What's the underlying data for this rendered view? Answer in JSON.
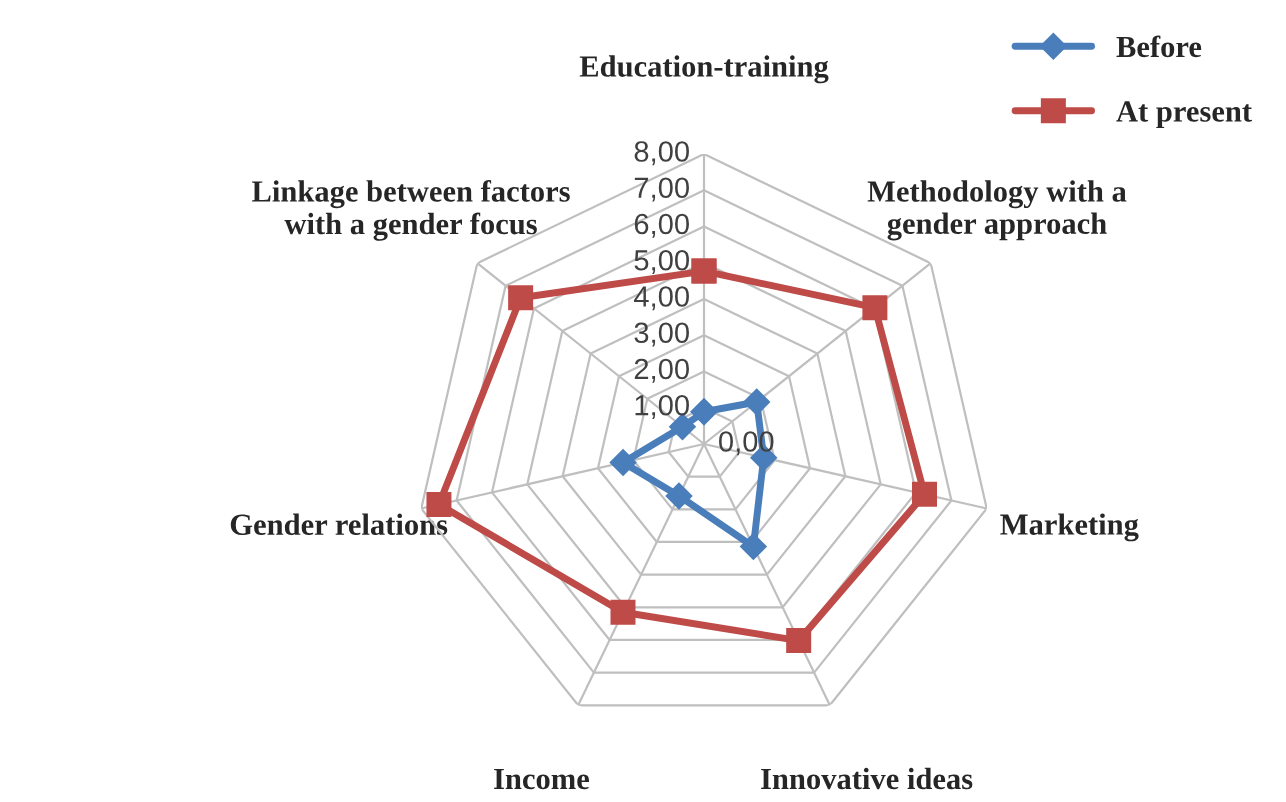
{
  "chart_data": {
    "type": "radar",
    "categories": [
      "Education-training",
      "Methodology with a\ngender approach",
      "Marketing",
      "Innovative ideas",
      "Income",
      "Gender relations",
      "Linkage between factors\nwith a gender focus"
    ],
    "series": [
      {
        "name": "Before",
        "color": "#4a7ebb",
        "marker": "diamond",
        "values": [
          0.89,
          1.86,
          1.69,
          3.14,
          1.59,
          2.29,
          0.76
        ]
      },
      {
        "name": "At present",
        "color": "#be4b48",
        "marker": "square",
        "values": [
          4.77,
          6.03,
          6.24,
          6.02,
          5.15,
          7.5,
          6.47
        ]
      }
    ],
    "ylim": [
      0,
      8
    ],
    "yticks": [
      {
        "value": 0,
        "label": "0,00"
      },
      {
        "value": 1,
        "label": "1,00"
      },
      {
        "value": 2,
        "label": "2,00"
      },
      {
        "value": 3,
        "label": "3,00"
      },
      {
        "value": 4,
        "label": "4,00"
      },
      {
        "value": 5,
        "label": "5,00"
      },
      {
        "value": 6,
        "label": "6,00"
      },
      {
        "value": 7,
        "label": "7,00"
      },
      {
        "value": 8,
        "label": "8,00"
      }
    ],
    "grid": true,
    "legend": "top right"
  }
}
